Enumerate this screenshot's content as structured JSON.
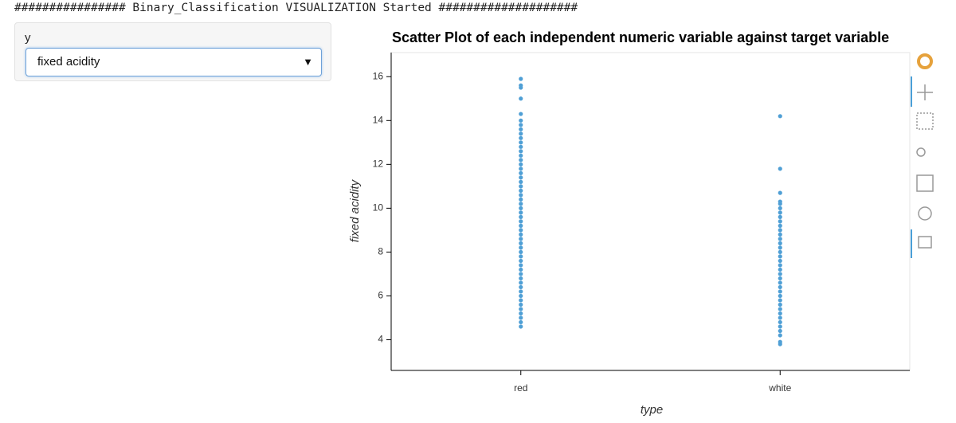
{
  "log_line": "################ Binary_Classification VISUALIZATION Started ####################",
  "widget": {
    "label": "y",
    "selected": "fixed acidity"
  },
  "chart_data": {
    "type": "scatter",
    "title": "Scatter Plot of each independent numeric variable against target variable",
    "x_label": "type",
    "y_label": "fixed acidity",
    "categories": [
      "red",
      "white"
    ],
    "values": [
      [
        4.6,
        4.8,
        5.0,
        5.2,
        5.4,
        5.6,
        5.8,
        6.0,
        6.2,
        6.4,
        6.6,
        6.8,
        7.0,
        7.2,
        7.4,
        7.6,
        7.8,
        8.0,
        8.2,
        8.4,
        8.6,
        8.8,
        9.0,
        9.2,
        9.4,
        9.6,
        9.8,
        10.0,
        10.2,
        10.4,
        10.6,
        10.8,
        11.0,
        11.2,
        11.4,
        11.6,
        11.8,
        12.0,
        12.2,
        12.4,
        12.6,
        12.8,
        13.0,
        13.2,
        13.4,
        13.6,
        13.8,
        14.0,
        14.3,
        15.0,
        15.5,
        15.6,
        15.9
      ],
      [
        3.8,
        3.9,
        4.2,
        4.4,
        4.6,
        4.8,
        5.0,
        5.2,
        5.4,
        5.6,
        5.8,
        6.0,
        6.2,
        6.4,
        6.6,
        6.8,
        7.0,
        7.2,
        7.4,
        7.6,
        7.8,
        8.0,
        8.2,
        8.4,
        8.6,
        8.8,
        9.0,
        9.2,
        9.4,
        9.6,
        9.8,
        10.0,
        10.2,
        10.3,
        10.7,
        11.8,
        14.2
      ]
    ],
    "color": "#4f9fd5",
    "ylim": [
      2.6,
      17.1
    ],
    "yticks": [
      4,
      6,
      8,
      10,
      12,
      14,
      16
    ],
    "grid": false
  }
}
